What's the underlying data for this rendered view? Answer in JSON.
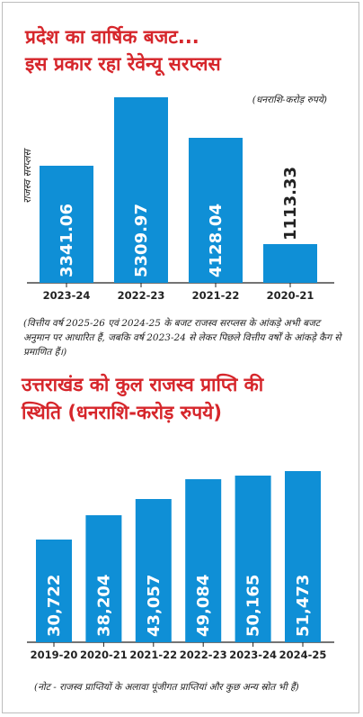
{
  "top_chart": {
    "title_line1": "प्रदेश का वार्षिक बजट...",
    "title_line2": "इस प्रकार रहा रेवेन्यू सरप्लस",
    "unit_note": "(धनराशि-करोड़ रुपये)",
    "note": "(वित्तीय वर्ष 2025-26 एवं 2024-25 के बजट राजस्व सरप्लस के आंकड़े अभी बजट अनुमान पर आधारित हैं, जबकि वर्ष 2023-24 से लेकर पिछले वित्तीय वर्षों के आंकड़े कैग से प्रमाणित हैं।)"
  },
  "bottom_chart": {
    "title_line1": "उत्तराखंड को कुल राजस्व प्राप्ति की",
    "title_line2": "स्थिति (धनराशि-करोड़ रुपये)",
    "note": "(नोट - राजस्व प्राप्तियों के अलावा पूंजीगत प्राप्तियां और कुछ अन्य स्रोत भी हैं)"
  },
  "chart_data": [
    {
      "type": "bar",
      "title": "प्रदेश का वार्षिक बजट... इस प्रकार रहा रेवेन्यू सरप्लस",
      "ylabel": "राजस्व सरप्लस",
      "categories": [
        "2023-24",
        "2022-23",
        "2021-22",
        "2020-21"
      ],
      "values": [
        3341.06,
        5309.97,
        4128.04,
        1113.33
      ],
      "value_labels": [
        "3341.06",
        "5309.97",
        "4128.04",
        "1113.33"
      ],
      "ylim": [
        0,
        5400
      ],
      "color": "#0f8fd6",
      "grid": false
    },
    {
      "type": "bar",
      "title": "उत्तराखंड को कुल राजस्व प्राप्ति की स्थिति (धनराशि-करोड़ रुपये)",
      "categories": [
        "2019-20",
        "2020-21",
        "2021-22",
        "2022-23",
        "2023-24",
        "2024-25"
      ],
      "values": [
        30722,
        38204,
        43057,
        49084,
        50165,
        51473
      ],
      "value_labels": [
        "30,722",
        "38,204",
        "43,057",
        "49,084",
        "50,165",
        "51,473"
      ],
      "ylim": [
        0,
        59000
      ],
      "color": "#0f8fd6",
      "grid": false
    }
  ]
}
